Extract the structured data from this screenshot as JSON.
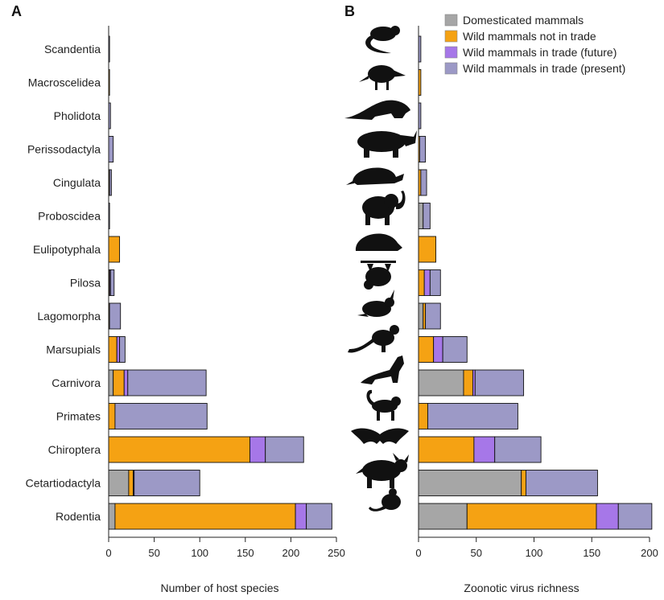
{
  "colors": {
    "Domesticated mammals": "#a6a6a6",
    "Wild mammals not in trade": "#f5a213",
    "Wild mammals in trade (future)": "#a677e8",
    "Wild mammals in trade (present)": "#9c99c6"
  },
  "legend": [
    "Domesticated mammals",
    "Wild mammals not in trade",
    "Wild mammals in trade (future)",
    "Wild mammals in trade (present)"
  ],
  "chart_data": [
    {
      "panel": "A",
      "type": "bar",
      "orientation": "horizontal",
      "stacked": true,
      "xlabel": "Number of host species",
      "xlim": [
        0,
        250
      ],
      "xticks": [
        "0",
        "50",
        "100",
        "150",
        "200",
        "250"
      ],
      "categories": [
        "Scandentia",
        "Macroscelidea",
        "Pholidota",
        "Perissodactyla",
        "Cingulata",
        "Proboscidea",
        "Eulipotyphala",
        "Pilosa",
        "Lagomorpha",
        "Marsupials",
        "Carnivora",
        "Primates",
        "Chiroptera",
        "Cetartiodactyla",
        "Rodentia"
      ],
      "series": [
        {
          "name": "Domesticated mammals",
          "values": [
            0,
            0,
            0,
            0,
            0,
            0,
            0,
            0,
            0,
            0,
            5,
            0,
            0,
            22,
            7
          ]
        },
        {
          "name": "Wild mammals not in trade",
          "values": [
            0,
            1,
            0,
            0,
            1,
            0,
            12,
            1,
            1,
            9,
            12,
            7,
            155,
            5,
            198
          ]
        },
        {
          "name": "Wild mammals in trade (future)",
          "values": [
            0,
            0,
            0,
            0,
            0,
            0,
            0,
            1,
            0,
            3,
            4,
            0,
            17,
            1,
            12
          ]
        },
        {
          "name": "Wild mammals in trade (present)",
          "values": [
            1,
            0,
            2,
            5,
            2,
            1,
            0,
            4,
            12,
            6,
            86,
            101,
            42,
            72,
            28
          ]
        }
      ]
    },
    {
      "panel": "B",
      "type": "bar",
      "orientation": "horizontal",
      "stacked": true,
      "xlabel": "Zoonotic virus richness",
      "xlim": [
        0,
        200
      ],
      "xticks": [
        "0",
        "50",
        "100",
        "150",
        "200"
      ],
      "categories": [
        "Scandentia",
        "Macroscelidea",
        "Pholidota",
        "Perissodactyla",
        "Cingulata",
        "Proboscidea",
        "Eulipotyphala",
        "Pilosa",
        "Lagomorpha",
        "Marsupials",
        "Carnivora",
        "Primates",
        "Chiroptera",
        "Cetartiodactyla",
        "Rodentia"
      ],
      "series": [
        {
          "name": "Domesticated mammals",
          "values": [
            0,
            0,
            0,
            0,
            0,
            4,
            0,
            0,
            4,
            0,
            39,
            0,
            0,
            89,
            42
          ]
        },
        {
          "name": "Wild mammals not in trade",
          "values": [
            0,
            2,
            0,
            1,
            2,
            0,
            15,
            5,
            2,
            13,
            8,
            8,
            48,
            4,
            112
          ]
        },
        {
          "name": "Wild mammals in trade (future)",
          "values": [
            0,
            0,
            0,
            0,
            0,
            0,
            0,
            5,
            0,
            8,
            2,
            0,
            18,
            0,
            19
          ]
        },
        {
          "name": "Wild mammals in trade (present)",
          "values": [
            2,
            0,
            2,
            5,
            5,
            6,
            0,
            9,
            13,
            21,
            42,
            78,
            40,
            62,
            29
          ]
        }
      ]
    }
  ],
  "silhouettes": [
    "tree-shrew-icon",
    "elephant-shrew-icon",
    "pangolin-icon",
    "rhinoceros-icon",
    "armadillo-icon",
    "elephant-icon",
    "hedgehog-icon",
    "sloth-icon",
    "rabbit-icon",
    "kangaroo-icon",
    "wolf-icon",
    "monkey-icon",
    "bat-icon",
    "bull-icon",
    "rat-icon"
  ]
}
